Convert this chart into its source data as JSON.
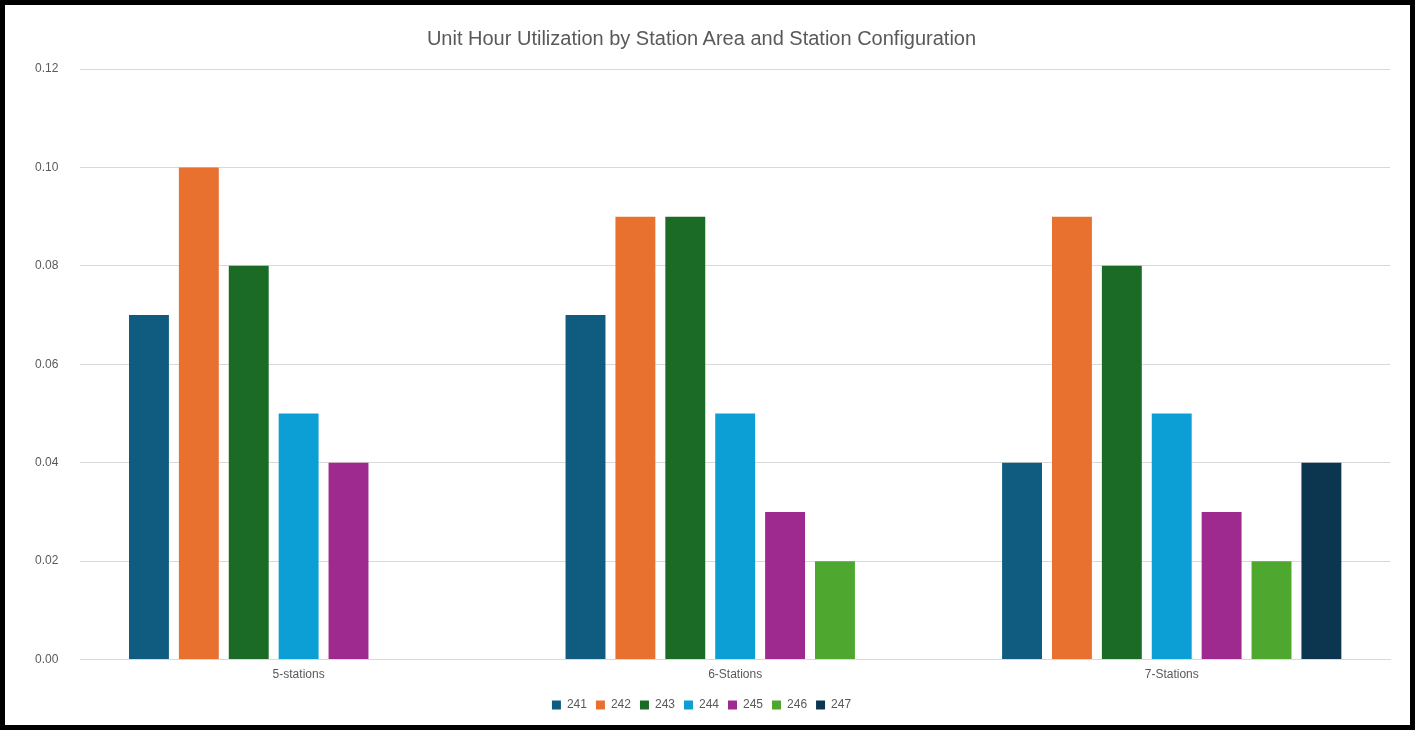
{
  "chart_data": {
    "type": "bar",
    "title": "Unit Hour Utilization by Station Area and Station Configuration",
    "categories": [
      "5-stations",
      "6-Stations",
      "7-Stations"
    ],
    "series": [
      {
        "name": "241",
        "color": "#0f5c80",
        "values": [
          0.07,
          0.07,
          0.04
        ]
      },
      {
        "name": "242",
        "color": "#e87130",
        "values": [
          0.1,
          0.09,
          0.09
        ]
      },
      {
        "name": "243",
        "color": "#1b6b27",
        "values": [
          0.08,
          0.09,
          0.08
        ]
      },
      {
        "name": "244",
        "color": "#0b9fd6",
        "values": [
          0.05,
          0.05,
          0.05
        ]
      },
      {
        "name": "245",
        "color": "#9e2a8f",
        "values": [
          0.04,
          0.03,
          0.03
        ]
      },
      {
        "name": "246",
        "color": "#4ea72e",
        "values": [
          null,
          0.02,
          0.02
        ]
      },
      {
        "name": "247",
        "color": "#0c3650",
        "values": [
          null,
          null,
          0.04
        ]
      }
    ],
    "ylim": [
      0,
      0.12
    ],
    "yticks": [
      {
        "value": 0,
        "label": "0.00"
      },
      {
        "value": 0.02,
        "label": "0.02"
      },
      {
        "value": 0.04,
        "label": "0.04"
      },
      {
        "value": 0.06,
        "label": "0.06"
      },
      {
        "value": 0.08,
        "label": "0.08"
      },
      {
        "value": 0.1,
        "label": "0.10"
      },
      {
        "value": 0.12,
        "label": "0.12"
      }
    ],
    "grid": "y",
    "legend": "bottom"
  }
}
